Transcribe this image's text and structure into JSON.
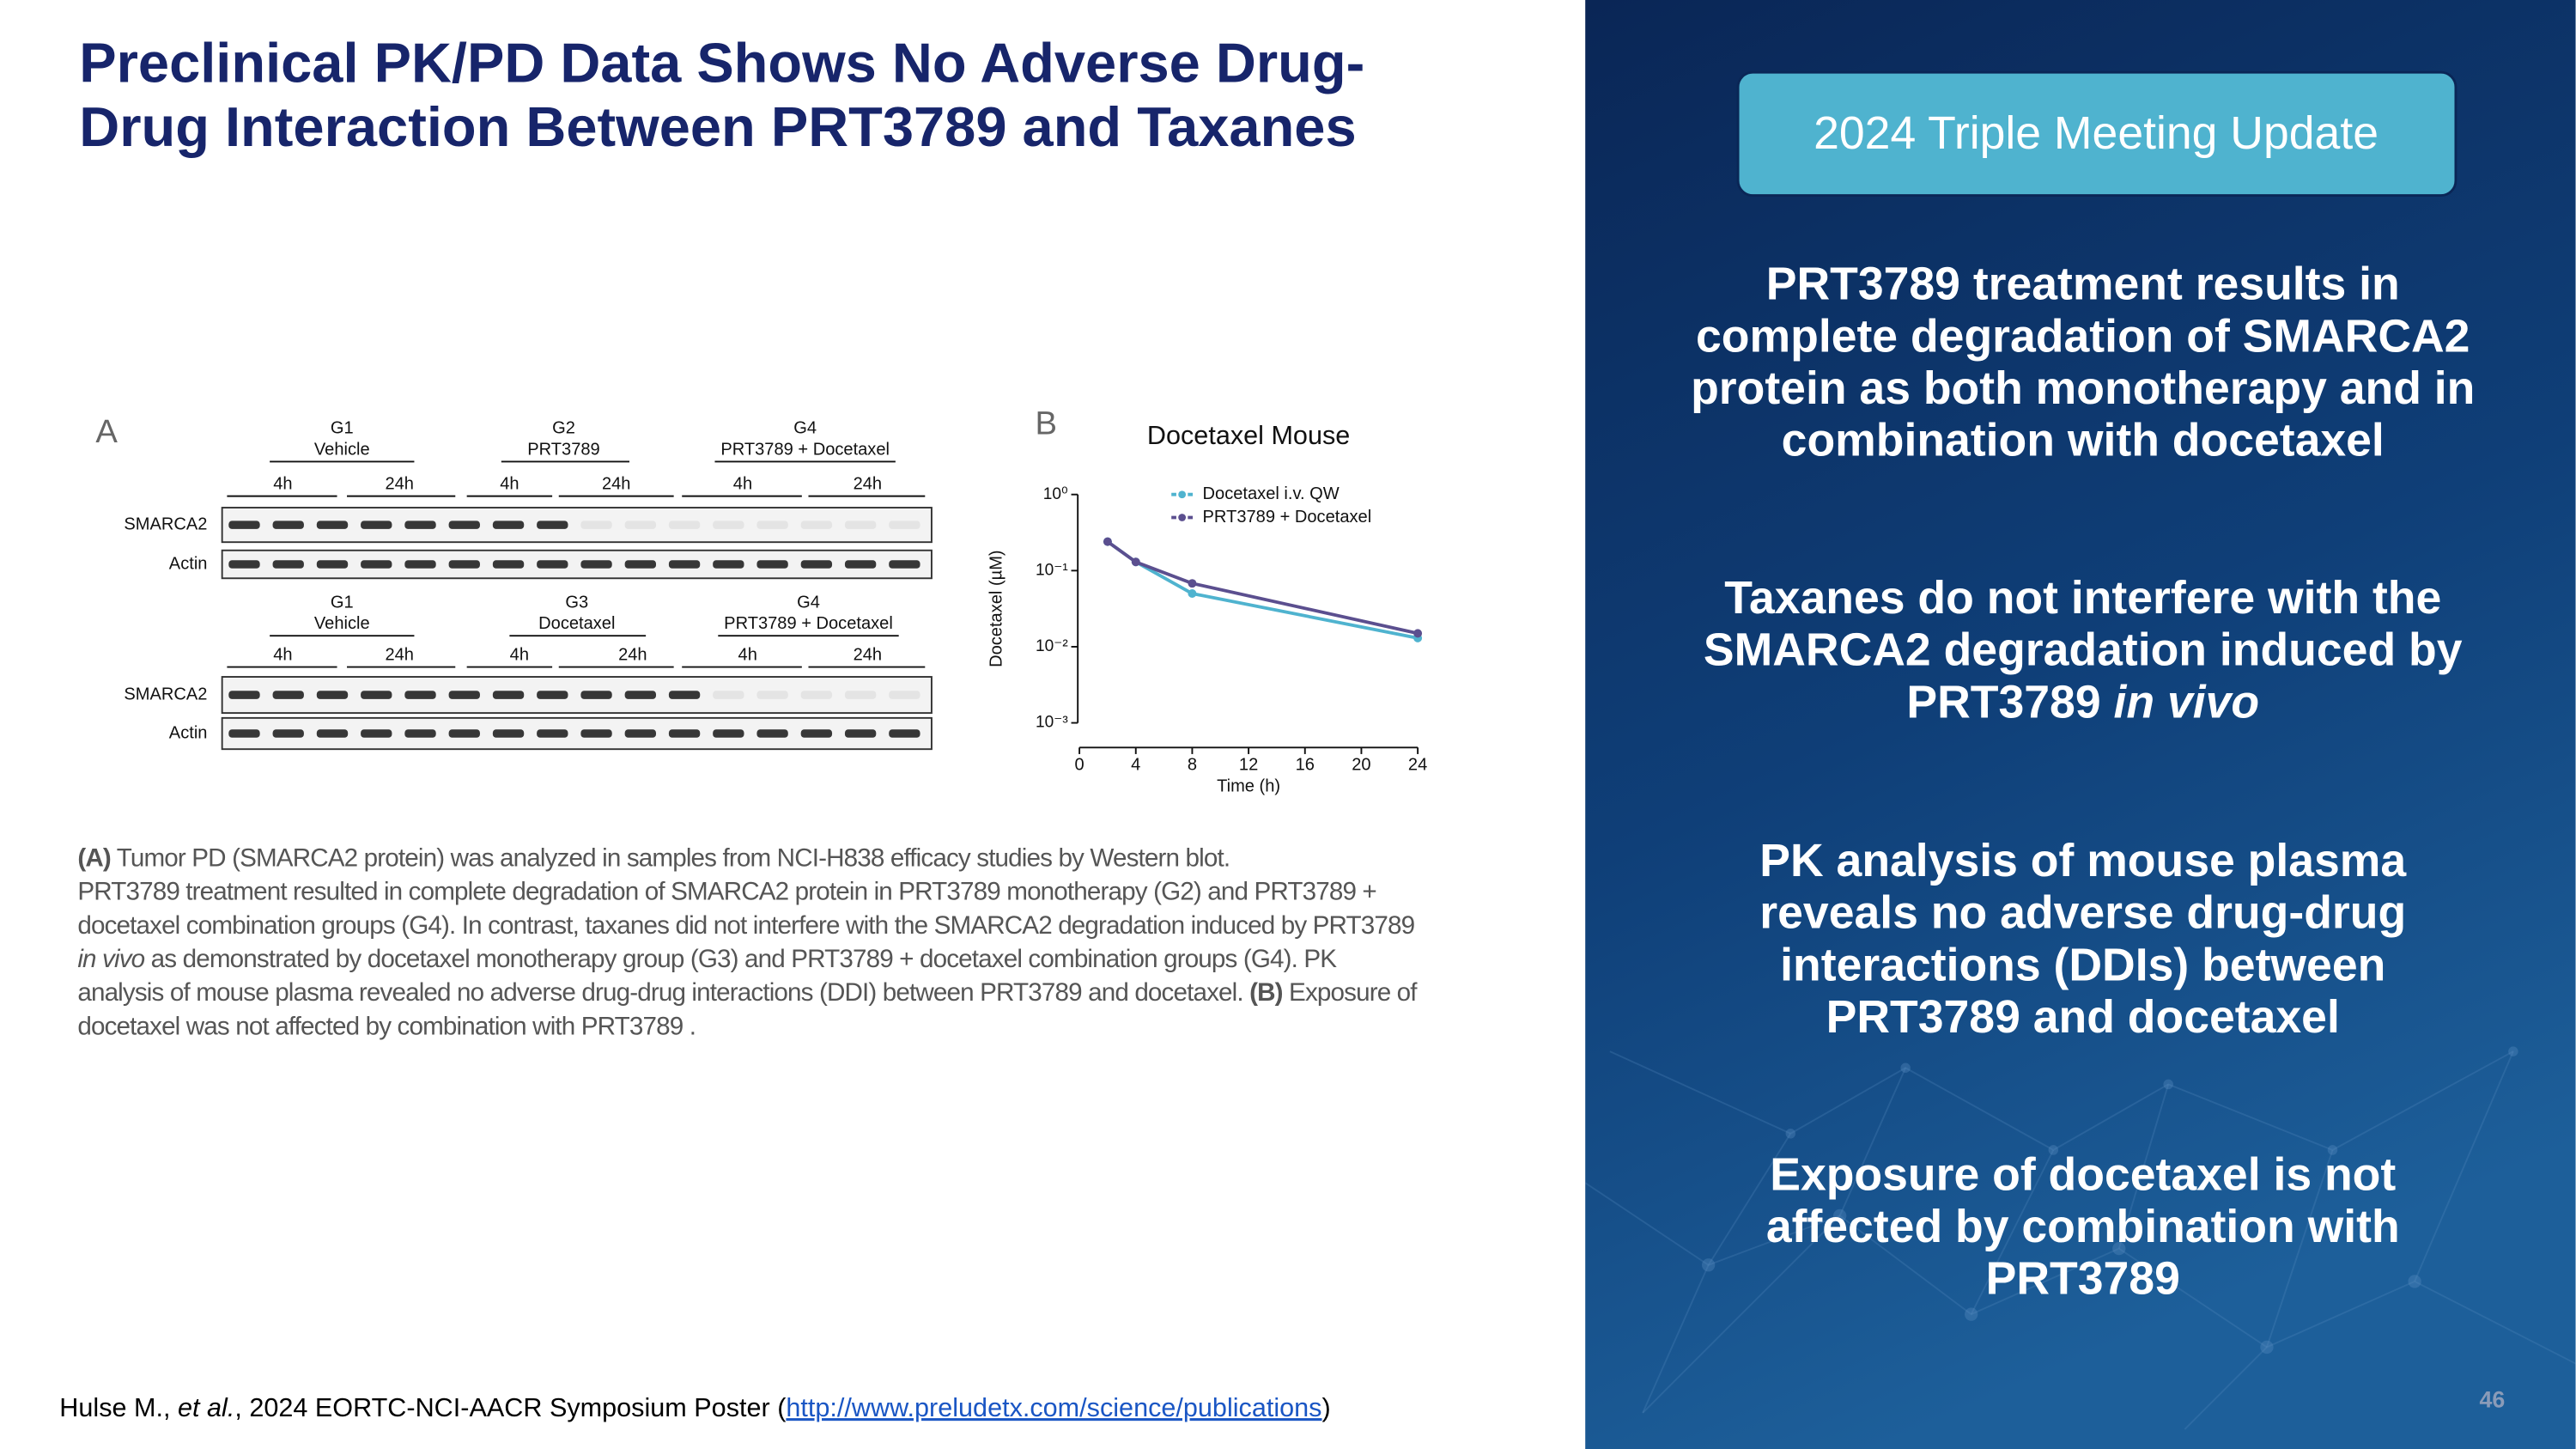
{
  "title": [
    "Preclinical PK/PD Data Shows No Adverse Drug-",
    "Drug Interaction Between PRT3789 and Taxanes"
  ],
  "badge": "2024 Triple Meeting Update",
  "bullets": [
    [
      [
        "PRT3789 treatment results in"
      ],
      [
        "complete degradation of SMARCA2"
      ],
      [
        "protein as both monotherapy and in"
      ],
      [
        "combination with docetaxel"
      ]
    ],
    [
      [
        "Taxanes do not interfere with the"
      ],
      [
        "SMARCA2 degradation induced by"
      ],
      [
        "PRT3789 ",
        {
          "text": "in vivo",
          "italic": true
        }
      ]
    ],
    [
      [
        "PK analysis of mouse plasma"
      ],
      [
        "reveals no adverse drug-drug"
      ],
      [
        "interactions (DDIs) between"
      ],
      [
        "PRT3789 and docetaxel"
      ]
    ],
    [
      [
        "Exposure of docetaxel is not"
      ],
      [
        "affected by combination with"
      ],
      [
        "PRT3789"
      ]
    ]
  ],
  "panel_a": {
    "label": "A",
    "blots": [
      {
        "groups": [
          {
            "name": "G1",
            "desc": "Vehicle"
          },
          {
            "name": "G2",
            "desc": "PRT3789"
          },
          {
            "name": "G4",
            "desc": "PRT3789 + Docetaxel"
          }
        ],
        "times": [
          "4h",
          "24h",
          "4h",
          "24h",
          "4h",
          "24h"
        ],
        "rows": [
          "SMARCA2",
          "Actin"
        ]
      },
      {
        "groups": [
          {
            "name": "G1",
            "desc": "Vehicle"
          },
          {
            "name": "G3",
            "desc": "Docetaxel"
          },
          {
            "name": "G4",
            "desc": "PRT3789 + Docetaxel"
          }
        ],
        "times": [
          "4h",
          "24h",
          "4h",
          "24h",
          "4h",
          "24h"
        ],
        "rows": [
          "SMARCA2",
          "Actin"
        ]
      }
    ]
  },
  "chart_data": {
    "type": "line",
    "label": "B",
    "title": "Docetaxel Mouse",
    "x_label": "Time (h)",
    "y_label": "Docetaxel (µM)",
    "log_y": true,
    "xlim": [
      0,
      24
    ],
    "xticks": [
      0,
      4,
      8,
      12,
      16,
      20,
      24
    ],
    "ylim": [
      0.001,
      1
    ],
    "yticks": [
      {
        "value": 1,
        "label": "10⁰"
      },
      {
        "value": 0.1,
        "label": "10⁻¹"
      },
      {
        "value": 0.01,
        "label": "10⁻²"
      },
      {
        "value": 0.001,
        "label": "10⁻³"
      }
    ],
    "x": [
      2,
      4,
      8,
      24
    ],
    "series": [
      {
        "name": "Docetaxel i.v. QW",
        "color": "#4fb3cf",
        "values": [
          0.24,
          0.13,
          0.05,
          0.013
        ]
      },
      {
        "name": "PRT3789 + Docetaxel",
        "color": "#5b4f8f",
        "values": [
          0.24,
          0.13,
          0.068,
          0.015
        ]
      }
    ]
  },
  "caption": [
    [
      {
        "text": "(A)",
        "bold": true
      },
      " Tumor PD (SMARCA2 protein) was analyzed in samples from NCI-H838 efficacy studies by Western blot."
    ],
    [
      "PRT3789 treatment resulted in complete degradation of SMARCA2 protein in PRT3789 monotherapy (G2) and PRT3789 +"
    ],
    [
      "docetaxel combination groups (G4). In contrast, taxanes did not interfere with the SMARCA2 degradation induced by PRT3789"
    ],
    [
      {
        "text": "in vivo",
        "italic": true
      },
      " as demonstrated by docetaxel monotherapy group (G3) and PRT3789 + docetaxel combination groups (G4). PK"
    ],
    [
      "analysis of mouse plasma revealed no adverse drug-drug interactions (DDI) between PRT3789 and docetaxel. ",
      {
        "text": "(B)",
        "bold": true
      },
      " Exposure of"
    ],
    [
      "docetaxel was not affected by combination with PRT3789 ."
    ]
  ],
  "footer": [
    "Hulse M., ",
    {
      "text": "et al.",
      "italic": true
    },
    ", 2024 EORTC-NCI-AACR Symposium Poster (",
    {
      "text": "http://www.preludetx.com/science/publications",
      "link": true
    },
    ")"
  ],
  "page_number": "46"
}
